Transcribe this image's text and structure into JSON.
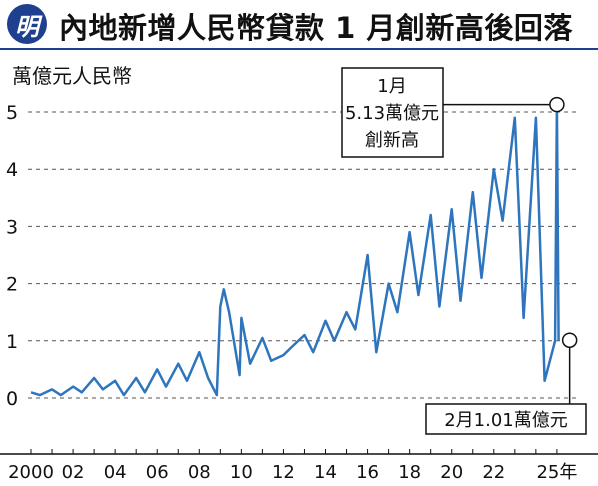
{
  "header": {
    "logo_char": "明",
    "title": "內地新增人民幣貸款 1 月創新高後回落"
  },
  "chart_data": {
    "type": "line",
    "ylabel": "萬億元人民幣",
    "ylim": [
      0,
      5.2
    ],
    "yticks": [
      "0",
      "1",
      "2",
      "3",
      "4",
      "5"
    ],
    "xticks": [
      "2000",
      "02",
      "04",
      "06",
      "08",
      "10",
      "12",
      "14",
      "16",
      "18",
      "20",
      "22",
      "25年"
    ],
    "grid": "horizontal dashed",
    "series": [
      {
        "name": "",
        "color": "#2e75bd",
        "x": [
          "2000-01",
          "2000-06",
          "2001-01",
          "2001-06",
          "2002-01",
          "2002-06",
          "2003-01",
          "2003-06",
          "2004-01",
          "2004-06",
          "2005-01",
          "2005-06",
          "2006-01",
          "2006-06",
          "2007-01",
          "2007-06",
          "2008-01",
          "2008-06",
          "2008-11",
          "2009-01",
          "2009-03",
          "2009-06",
          "2009-12",
          "2010-01",
          "2010-06",
          "2011-01",
          "2011-06",
          "2012-01",
          "2012-06",
          "2013-01",
          "2013-06",
          "2014-01",
          "2014-06",
          "2015-01",
          "2015-06",
          "2016-01",
          "2016-06",
          "2017-01",
          "2017-06",
          "2018-01",
          "2018-06",
          "2019-01",
          "2019-06",
          "2020-01",
          "2020-06",
          "2021-01",
          "2021-06",
          "2022-01",
          "2022-06",
          "2023-01",
          "2023-06",
          "2024-01",
          "2024-06",
          "2024-12",
          "2025-01",
          "2025-02"
        ],
        "values": [
          0.1,
          0.05,
          0.15,
          0.05,
          0.2,
          0.1,
          0.35,
          0.15,
          0.3,
          0.05,
          0.35,
          0.1,
          0.5,
          0.2,
          0.6,
          0.3,
          0.8,
          0.35,
          0.05,
          1.6,
          1.9,
          1.5,
          0.4,
          1.4,
          0.6,
          1.05,
          0.65,
          0.75,
          0.9,
          1.1,
          0.8,
          1.35,
          1.0,
          1.5,
          1.2,
          2.5,
          0.8,
          2.0,
          1.5,
          2.9,
          1.8,
          3.2,
          1.6,
          3.3,
          1.7,
          3.6,
          2.1,
          4.0,
          3.1,
          4.9,
          1.4,
          4.9,
          0.3,
          1.0,
          5.13,
          1.01
        ]
      }
    ],
    "annotations": [
      {
        "label_lines": [
          "1月",
          "5.13萬億元",
          "創新高"
        ],
        "x": "2025-01",
        "y": 5.13
      },
      {
        "label_lines": [
          "2月1.01萬億元"
        ],
        "x": "2025-02",
        "y": 1.01
      }
    ]
  }
}
